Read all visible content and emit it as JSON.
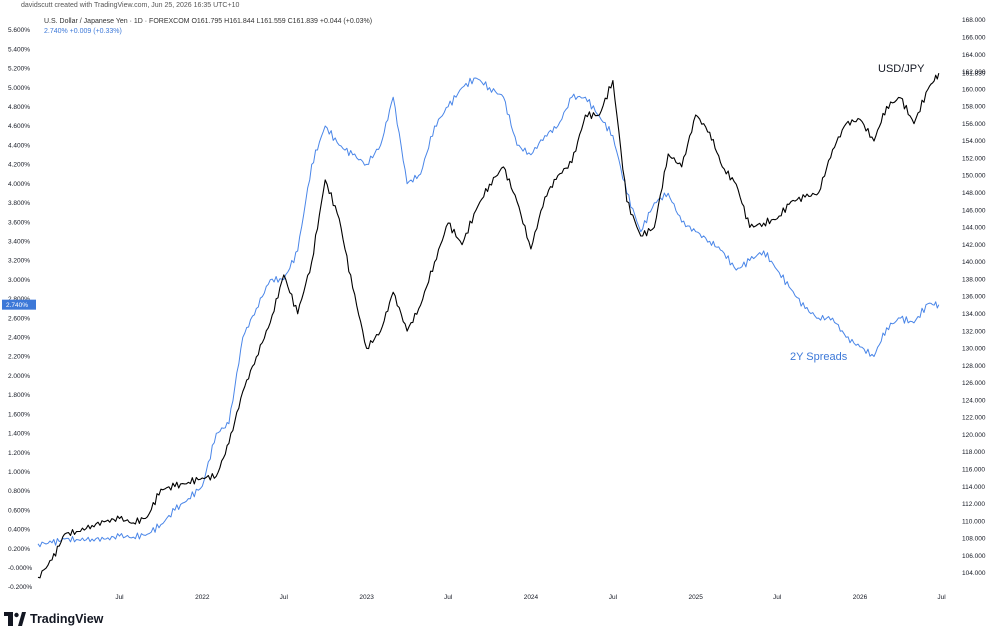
{
  "header": {
    "attribution": "davidscutt created with TradingView.com, Jun 25, 2026 16:35 UTC+10",
    "symbol_line": "U.S. Dollar / Japanese Yen · 1D · FOREXCOM  O161.795  H161.844  L161.559  C161.839  +0.044 (+0.03%)",
    "spread_line": "2.740%  +0.009 (+0.33%)"
  },
  "annotations": {
    "usdjpy": "USD/JPY",
    "spreads": "2Y Spreads"
  },
  "branding": {
    "logo_text": "TradingView"
  },
  "colors": {
    "usdjpy": "#000000",
    "spreads": "#4a86e8",
    "spread_tag": "#3c78d8"
  },
  "chart_data": {
    "type": "line",
    "x_tick_labels": [
      "Jul",
      "2022",
      "Jul",
      "2023",
      "Jul",
      "2024",
      "Jul",
      "2025",
      "Jul",
      "2026",
      "Jul"
    ],
    "x_range": [
      "2021-01-01",
      "2026-07-31"
    ],
    "left_axis": {
      "labels": [
        "5.600%",
        "5.400%",
        "5.200%",
        "5.000%",
        "4.800%",
        "4.600%",
        "4.400%",
        "4.200%",
        "4.000%",
        "3.800%",
        "3.600%",
        "3.400%",
        "3.200%",
        "3.000%",
        "2.800%",
        "2.600%",
        "2.400%",
        "2.200%",
        "2.000%",
        "1.800%",
        "1.600%",
        "1.400%",
        "1.200%",
        "1.000%",
        "0.800%",
        "0.600%",
        "0.400%",
        "0.200%",
        "-0.000%",
        "-0.200%"
      ],
      "range": [
        -0.2,
        5.6
      ],
      "last_value_label": "2.740%"
    },
    "right_axis": {
      "labels": [
        "168.000",
        "166.000",
        "164.000",
        "162.000",
        "161.839",
        "160.000",
        "158.000",
        "156.000",
        "154.000",
        "152.000",
        "150.000",
        "148.000",
        "146.000",
        "144.000",
        "142.000",
        "140.000",
        "138.000",
        "136.000",
        "134.000",
        "132.000",
        "130.000",
        "128.000",
        "126.000",
        "124.000",
        "122.000",
        "120.000",
        "118.000",
        "116.000",
        "114.000",
        "112.000",
        "110.000",
        "108.000",
        "106.000",
        "104.000"
      ],
      "range": [
        103,
        168
      ]
    },
    "series": [
      {
        "name": "USD/JPY",
        "axis": "right",
        "points": [
          [
            "2021-01-01",
            103.5
          ],
          [
            "2021-02-01",
            105.5
          ],
          [
            "2021-03-01",
            108.5
          ],
          [
            "2021-04-01",
            108.8
          ],
          [
            "2021-05-01",
            109.5
          ],
          [
            "2021-06-01",
            110.0
          ],
          [
            "2021-07-01",
            110.3
          ],
          [
            "2021-08-01",
            109.8
          ],
          [
            "2021-09-01",
            110.5
          ],
          [
            "2021-10-01",
            113.7
          ],
          [
            "2021-11-01",
            114.0
          ],
          [
            "2021-12-01",
            114.5
          ],
          [
            "2022-01-01",
            115.0
          ],
          [
            "2022-02-01",
            115.2
          ],
          [
            "2022-03-01",
            119.0
          ],
          [
            "2022-04-01",
            125.0
          ],
          [
            "2022-05-01",
            129.0
          ],
          [
            "2022-06-01",
            133.0
          ],
          [
            "2022-07-01",
            138.5
          ],
          [
            "2022-08-01",
            134.0
          ],
          [
            "2022-09-01",
            140.0
          ],
          [
            "2022-10-01",
            149.5
          ],
          [
            "2022-11-01",
            145.0
          ],
          [
            "2022-12-01",
            137.0
          ],
          [
            "2023-01-01",
            130.0
          ],
          [
            "2023-02-01",
            132.0
          ],
          [
            "2023-03-01",
            136.5
          ],
          [
            "2023-04-01",
            132.0
          ],
          [
            "2023-05-01",
            135.0
          ],
          [
            "2023-06-01",
            140.0
          ],
          [
            "2023-07-01",
            144.5
          ],
          [
            "2023-08-01",
            142.0
          ],
          [
            "2023-09-01",
            146.0
          ],
          [
            "2023-10-01",
            149.0
          ],
          [
            "2023-11-01",
            151.0
          ],
          [
            "2023-12-01",
            147.0
          ],
          [
            "2024-01-01",
            141.5
          ],
          [
            "2024-02-01",
            147.5
          ],
          [
            "2024-03-01",
            150.0
          ],
          [
            "2024-04-01",
            151.5
          ],
          [
            "2024-05-01",
            157.0
          ],
          [
            "2024-06-01",
            157.0
          ],
          [
            "2024-07-01",
            161.0
          ],
          [
            "2024-08-01",
            147.0
          ],
          [
            "2024-09-01",
            143.0
          ],
          [
            "2024-10-01",
            144.0
          ],
          [
            "2024-11-01",
            152.5
          ],
          [
            "2024-12-01",
            151.0
          ],
          [
            "2025-01-01",
            157.0
          ],
          [
            "2025-02-01",
            155.0
          ],
          [
            "2025-03-01",
            151.0
          ],
          [
            "2025-04-01",
            149.0
          ],
          [
            "2025-05-01",
            144.0
          ],
          [
            "2025-06-01",
            144.5
          ],
          [
            "2025-07-01",
            145.0
          ],
          [
            "2025-08-01",
            147.0
          ],
          [
            "2025-09-01",
            147.5
          ],
          [
            "2025-10-01",
            148.0
          ],
          [
            "2025-11-01",
            153.0
          ],
          [
            "2025-12-01",
            156.0
          ],
          [
            "2026-01-01",
            156.5
          ],
          [
            "2026-02-01",
            154.0
          ],
          [
            "2026-03-01",
            158.0
          ],
          [
            "2026-04-01",
            159.0
          ],
          [
            "2026-05-01",
            156.0
          ],
          [
            "2026-06-01",
            160.0
          ],
          [
            "2026-06-25",
            161.839
          ]
        ]
      },
      {
        "name": "2Y Spreads",
        "axis": "left",
        "points": [
          [
            "2021-01-01",
            0.25
          ],
          [
            "2021-02-01",
            0.26
          ],
          [
            "2021-03-01",
            0.3
          ],
          [
            "2021-04-01",
            0.29
          ],
          [
            "2021-05-01",
            0.3
          ],
          [
            "2021-06-01",
            0.3
          ],
          [
            "2021-07-01",
            0.33
          ],
          [
            "2021-08-01",
            0.32
          ],
          [
            "2021-09-01",
            0.35
          ],
          [
            "2021-10-01",
            0.45
          ],
          [
            "2021-11-01",
            0.6
          ],
          [
            "2021-12-01",
            0.72
          ],
          [
            "2022-01-01",
            0.85
          ],
          [
            "2022-02-01",
            1.4
          ],
          [
            "2022-03-01",
            1.5
          ],
          [
            "2022-04-01",
            2.4
          ],
          [
            "2022-05-01",
            2.7
          ],
          [
            "2022-06-01",
            3.0
          ],
          [
            "2022-07-01",
            3.0
          ],
          [
            "2022-08-01",
            3.3
          ],
          [
            "2022-09-01",
            4.2
          ],
          [
            "2022-10-01",
            4.6
          ],
          [
            "2022-11-01",
            4.4
          ],
          [
            "2022-12-01",
            4.3
          ],
          [
            "2023-01-01",
            4.2
          ],
          [
            "2023-02-01",
            4.4
          ],
          [
            "2023-03-01",
            4.9
          ],
          [
            "2023-04-01",
            4.0
          ],
          [
            "2023-05-01",
            4.1
          ],
          [
            "2023-06-01",
            4.6
          ],
          [
            "2023-07-01",
            4.8
          ],
          [
            "2023-08-01",
            5.0
          ],
          [
            "2023-09-01",
            5.1
          ],
          [
            "2023-10-01",
            5.0
          ],
          [
            "2023-11-01",
            4.9
          ],
          [
            "2023-12-01",
            4.4
          ],
          [
            "2024-01-01",
            4.3
          ],
          [
            "2024-02-01",
            4.5
          ],
          [
            "2024-03-01",
            4.6
          ],
          [
            "2024-04-01",
            4.9
          ],
          [
            "2024-05-01",
            4.9
          ],
          [
            "2024-06-01",
            4.7
          ],
          [
            "2024-07-01",
            4.5
          ],
          [
            "2024-08-01",
            3.9
          ],
          [
            "2024-09-01",
            3.5
          ],
          [
            "2024-10-01",
            3.8
          ],
          [
            "2024-11-01",
            3.9
          ],
          [
            "2024-12-01",
            3.6
          ],
          [
            "2025-01-01",
            3.5
          ],
          [
            "2025-02-01",
            3.4
          ],
          [
            "2025-03-01",
            3.3
          ],
          [
            "2025-04-01",
            3.1
          ],
          [
            "2025-05-01",
            3.2
          ],
          [
            "2025-06-01",
            3.3
          ],
          [
            "2025-07-01",
            3.1
          ],
          [
            "2025-08-01",
            2.9
          ],
          [
            "2025-09-01",
            2.7
          ],
          [
            "2025-10-01",
            2.6
          ],
          [
            "2025-11-01",
            2.6
          ],
          [
            "2025-12-01",
            2.4
          ],
          [
            "2026-01-01",
            2.3
          ],
          [
            "2026-02-01",
            2.2
          ],
          [
            "2026-03-01",
            2.5
          ],
          [
            "2026-04-01",
            2.6
          ],
          [
            "2026-05-01",
            2.55
          ],
          [
            "2026-06-01",
            2.75
          ],
          [
            "2026-06-25",
            2.74
          ]
        ]
      }
    ]
  }
}
